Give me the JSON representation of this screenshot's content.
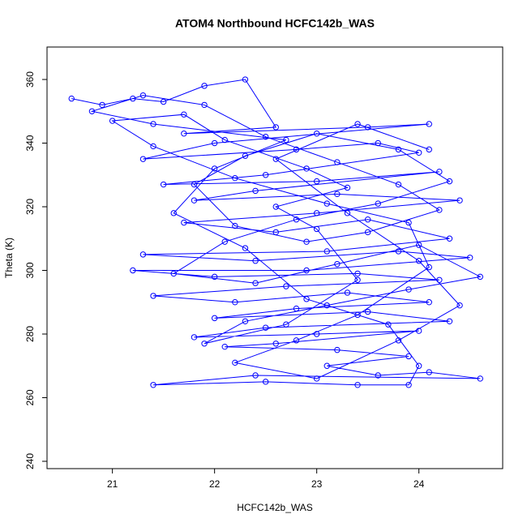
{
  "chart_data": {
    "type": "line",
    "title": "ATOM4 Northbound HCFC142b_WAS",
    "xlabel": "HCFC142b_WAS",
    "ylabel": "Theta (K)",
    "markers": "open-circle",
    "x": [
      20.6,
      20.9,
      21.2,
      21.5,
      21.9,
      22.3,
      22.6,
      21.7,
      23.5,
      24.1,
      22.0,
      21.3,
      22.8,
      23.6,
      24.0,
      22.5,
      21.5,
      23.0,
      24.2,
      22.4,
      21.8,
      23.2,
      24.4,
      23.0,
      21.7,
      22.6,
      23.5,
      24.3,
      23.1,
      21.3,
      22.4,
      23.8,
      24.5,
      22.9,
      21.2,
      22.0,
      23.4,
      24.2,
      22.7,
      21.4,
      22.2,
      23.3,
      24.1,
      22.8,
      22.0,
      23.5,
      24.3,
      22.5,
      21.8,
      23.0,
      24.0,
      22.6,
      22.1,
      23.2,
      23.9,
      23.1,
      23.6,
      24.1,
      24.6,
      22.4,
      21.4,
      22.5,
      23.4,
      23.9,
      24.0,
      23.7,
      22.9,
      22.3,
      21.6,
      22.0,
      22.7,
      21.4,
      20.8,
      21.3,
      21.9,
      22.5,
      23.2,
      23.8,
      24.2,
      23.5,
      22.9,
      22.2,
      21.8,
      22.3,
      23.0,
      23.8,
      24.3,
      23.6,
      22.8,
      22.1,
      21.6,
      22.4,
      23.2,
      24.0,
      24.6,
      23.9,
      23.1,
      22.3,
      21.9,
      22.7,
      23.4,
      23.0,
      22.6,
      23.3,
      22.9,
      22.1,
      21.7,
      21.0,
      21.4,
      22.2,
      23.1,
      23.9,
      24.1,
      23.4,
      22.8,
      22.2,
      23.0,
      23.8,
      24.4,
      24.0,
      23.3,
      22.6,
      23.4,
      24.1
    ],
    "series": [
      {
        "name": "HCFC142b_WAS",
        "color": "#0000ff",
        "values": [
          354,
          352,
          354,
          353,
          358,
          360,
          345,
          343,
          345,
          346,
          340,
          335,
          338,
          340,
          337,
          330,
          327,
          328,
          331,
          325,
          322,
          324,
          322,
          318,
          315,
          312,
          316,
          310,
          306,
          305,
          303,
          306,
          304,
          300,
          300,
          298,
          299,
          297,
          295,
          292,
          290,
          293,
          290,
          288,
          285,
          287,
          284,
          282,
          279,
          280,
          281,
          277,
          276,
          275,
          273,
          270,
          267,
          268,
          266,
          267,
          264,
          265,
          264,
          264,
          270,
          283,
          291,
          307,
          318,
          332,
          341,
          346,
          350,
          355,
          352,
          342,
          334,
          327,
          319,
          312,
          309,
          314,
          327,
          336,
          343,
          338,
          328,
          321,
          316,
          309,
          299,
          296,
          302,
          308,
          298,
          294,
          289,
          284,
          277,
          283,
          297,
          313,
          320,
          326,
          332,
          341,
          349,
          347,
          339,
          329,
          321,
          315,
          301,
          286,
          278,
          271,
          266,
          278,
          289,
          303,
          318,
          335,
          346,
          338
        ]
      }
    ],
    "xlim": [
      20.36,
      24.82
    ],
    "ylim": [
      237.7,
      370.2
    ],
    "xticks": [
      21,
      22,
      23,
      24
    ],
    "yticks": [
      240,
      260,
      280,
      300,
      320,
      340,
      360
    ]
  }
}
